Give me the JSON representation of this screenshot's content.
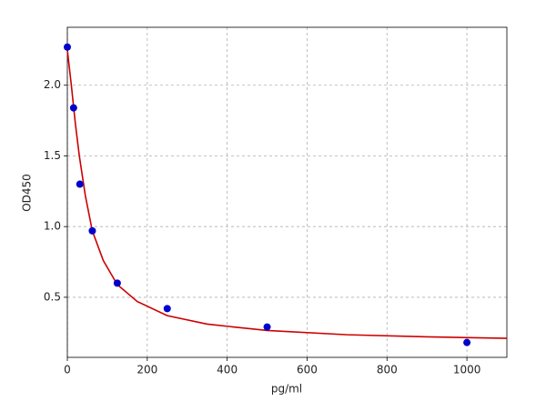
{
  "chart_data": {
    "type": "scatter",
    "xlabel": "pg/ml",
    "ylabel": "OD450",
    "xlim": [
      0,
      1100
    ],
    "ylim": [
      0.075,
      2.41
    ],
    "xticks": [
      0,
      200,
      400,
      600,
      800,
      1000
    ],
    "yticks": [
      0.5,
      1.0,
      1.5,
      2.0
    ],
    "grid": true,
    "series": [
      {
        "type": "scatter",
        "color": "#0000cc",
        "x": [
          0,
          15.6,
          31.25,
          62.5,
          125,
          250,
          500,
          1000
        ],
        "values": [
          2.27,
          1.84,
          1.3,
          0.97,
          0.6,
          0.42,
          0.29,
          0.18
        ]
      },
      {
        "type": "line",
        "color": "#cc0000",
        "x": [
          0,
          10,
          20,
          30,
          45,
          62.5,
          90,
          125,
          175,
          250,
          350,
          500,
          700,
          900,
          1100
        ],
        "values": [
          2.25,
          2.0,
          1.73,
          1.5,
          1.22,
          0.97,
          0.76,
          0.59,
          0.47,
          0.37,
          0.31,
          0.265,
          0.235,
          0.22,
          0.21
        ]
      }
    ]
  }
}
